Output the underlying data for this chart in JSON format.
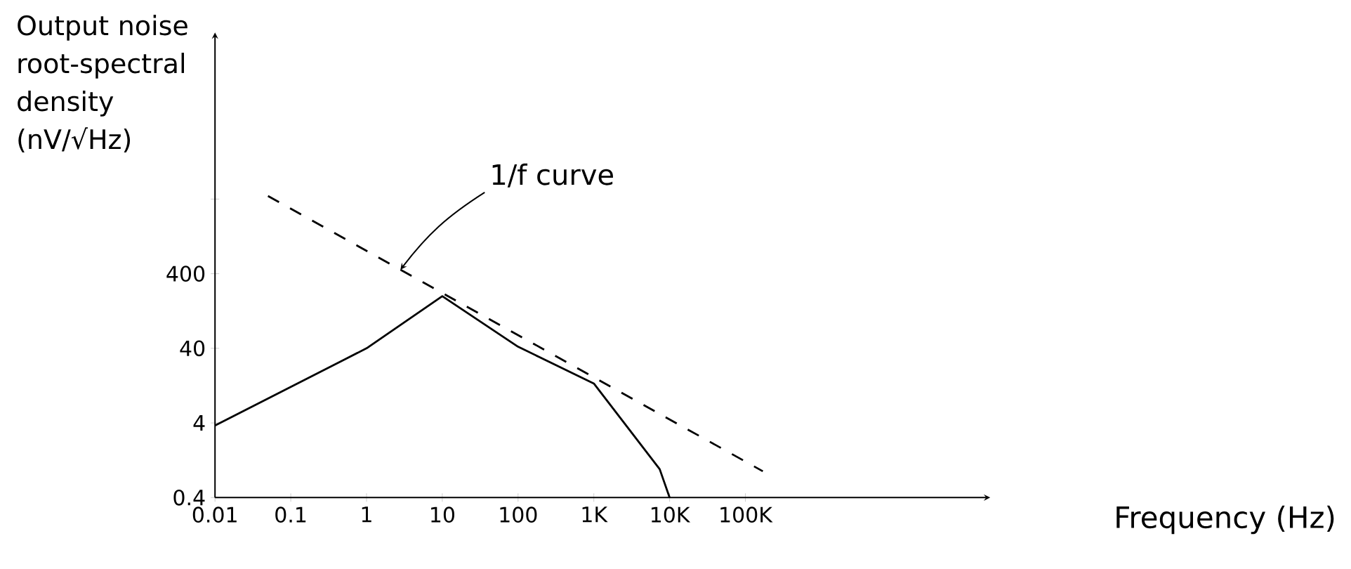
{
  "chart_data": {
    "type": "line",
    "log": "xy",
    "xlabel": "Frequency (Hz)",
    "ylabel": "Output noise root-spectral density (nV/√Hz)",
    "xlim": [
      0.01,
      150000000
    ],
    "ylim": [
      0.4,
      600000
    ],
    "xticks": [
      0.01,
      0.1,
      1,
      10,
      100,
      {
        "value": 1000,
        "label": "1K"
      },
      {
        "value": 10000,
        "label": "10K"
      },
      {
        "value": 100000,
        "label": "100K"
      }
    ],
    "yticks": [
      0.4,
      4,
      40,
      400,
      {
        "value": 4000,
        "label": null
      }
    ],
    "annotations": [
      {
        "text": "1/f curve",
        "x": 2.8,
        "y": 453
      }
    ],
    "series": [
      {
        "color": "#000000",
        "x": [
          0.01,
          1,
          10,
          100,
          1000,
          7400,
          10000
        ],
        "values": [
          3.7,
          40,
          200,
          42,
          13.5,
          0.96,
          0.4
        ]
      },
      {
        "color": "#000000",
        "line_style": "dashed",
        "x": [
          0.05,
          170000
        ],
        "values": [
          4400,
          0.9
        ]
      }
    ]
  }
}
